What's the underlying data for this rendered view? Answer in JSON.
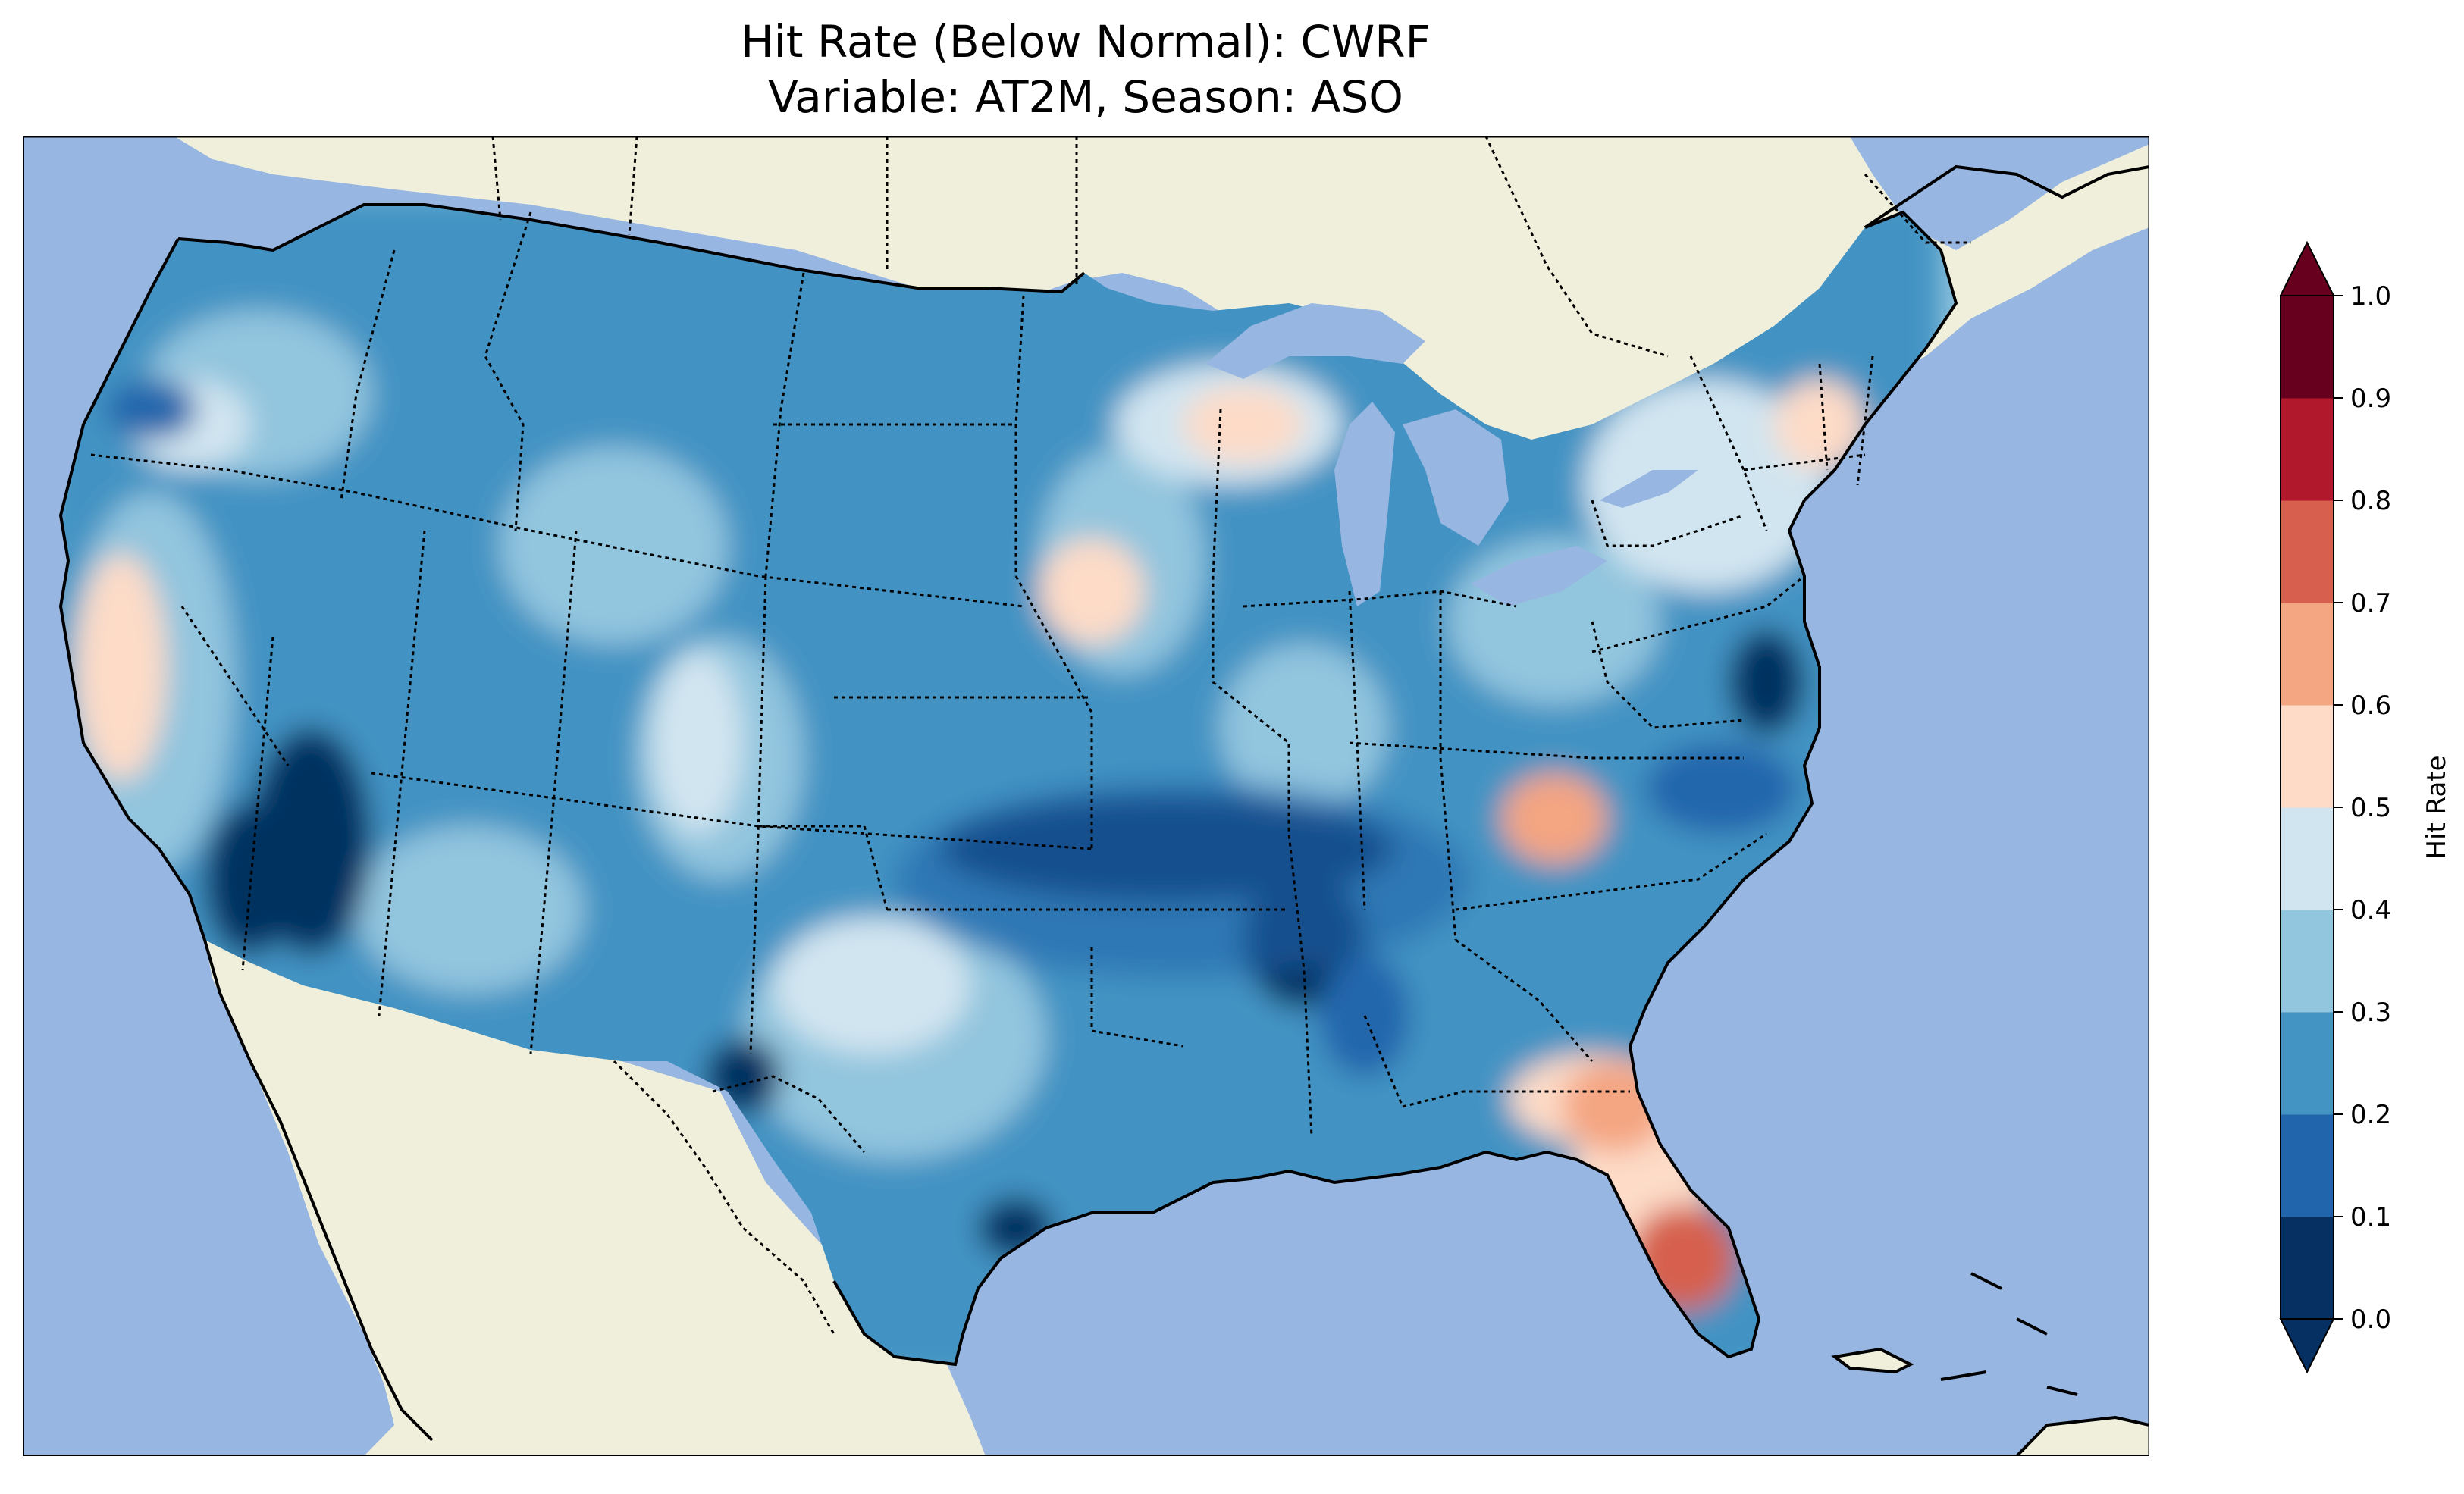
{
  "title_line1": "Hit Rate (Below Normal): CWRF",
  "title_line2": "Variable: AT2M, Season: ASO",
  "colorbar": {
    "label": "Hit Rate",
    "ticks": [
      "0.0",
      "0.1",
      "0.2",
      "0.3",
      "0.4",
      "0.5",
      "0.6",
      "0.7",
      "0.8",
      "0.9",
      "1.0"
    ],
    "colors": [
      "#053061",
      "#2166ac",
      "#4393c3",
      "#92c5de",
      "#d1e5f0",
      "#fddbc7",
      "#f4a582",
      "#d6604d",
      "#b2182b",
      "#67001f"
    ],
    "extend": "both"
  },
  "map": {
    "ocean_color": "#97b6e1",
    "land_color": "#efefdb",
    "projection": "Lambert Conformal",
    "region": "CONUS"
  }
}
